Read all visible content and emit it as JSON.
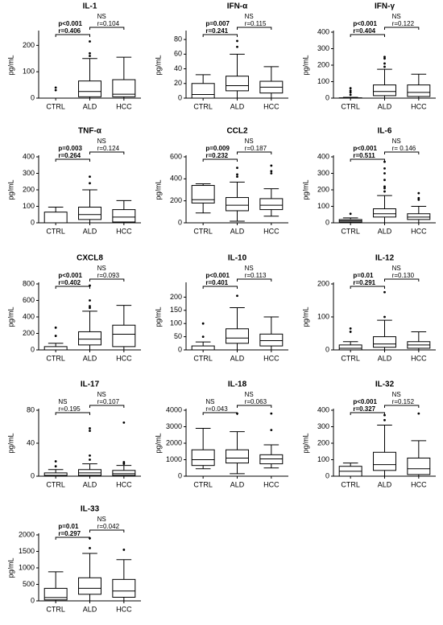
{
  "chart_data": [
    {
      "type": "box",
      "title": "IL-1",
      "y_label": "pg/mL",
      "categories": [
        "CTRL",
        "ALD",
        "HCC"
      ],
      "ylim": [
        0,
        250
      ],
      "yticks": [
        0,
        100,
        200
      ],
      "boxes": [
        {
          "whisker_low": 0,
          "q1": 0,
          "median": 0,
          "q3": 0,
          "whisker_high": 0,
          "outliers": [
            30,
            40
          ]
        },
        {
          "whisker_low": 0,
          "q1": 5,
          "median": 25,
          "q3": 65,
          "whisker_high": 150,
          "outliers": [
            160,
            170,
            215
          ]
        },
        {
          "whisker_low": 0,
          "q1": 5,
          "median": 15,
          "q3": 70,
          "whisker_high": 155,
          "outliers": []
        }
      ],
      "annotations": [
        {
          "text": [
            "p<0.001",
            "r=0.406"
          ],
          "bold": true
        },
        {
          "text": [
            "NS",
            "r=0.104"
          ],
          "bold": false
        }
      ]
    },
    {
      "type": "box",
      "title": "IFN-α",
      "y_label": "pg/mL",
      "categories": [
        "CTRL",
        "ALD",
        "HCC"
      ],
      "ylim": [
        0,
        90
      ],
      "yticks": [
        0,
        20,
        40,
        60,
        80
      ],
      "boxes": [
        {
          "whisker_low": 0,
          "q1": 0,
          "median": 5,
          "q3": 20,
          "whisker_high": 32,
          "outliers": []
        },
        {
          "whisker_low": 0,
          "q1": 10,
          "median": 17,
          "q3": 30,
          "whisker_high": 60,
          "outliers": [
            70,
            78
          ]
        },
        {
          "whisker_low": 0,
          "q1": 7,
          "median": 15,
          "q3": 23,
          "whisker_high": 43,
          "outliers": []
        }
      ],
      "annotations": [
        {
          "text": [
            "p=0.007",
            "r=0.241"
          ],
          "bold": true
        },
        {
          "text": [
            "NS",
            "r=0.115"
          ],
          "bold": false
        }
      ]
    },
    {
      "type": "box",
      "title": "IFN-γ",
      "y_label": "pg/mL",
      "categories": [
        "CTRL",
        "ALD",
        "HCC"
      ],
      "ylim": [
        0,
        400
      ],
      "yticks": [
        0,
        100,
        200,
        300,
        400
      ],
      "boxes": [
        {
          "whisker_low": 0,
          "q1": 0,
          "median": 0,
          "q3": 2,
          "whisker_high": 5,
          "outliers": [
            20,
            35,
            45,
            60
          ]
        },
        {
          "whisker_low": 0,
          "q1": 15,
          "median": 40,
          "q3": 80,
          "whisker_high": 175,
          "outliers": [
            190,
            210,
            240,
            250
          ]
        },
        {
          "whisker_low": 0,
          "q1": 10,
          "median": 35,
          "q3": 80,
          "whisker_high": 145,
          "outliers": []
        }
      ],
      "annotations": [
        {
          "text": [
            "p<0.001",
            "r=0.404"
          ],
          "bold": true
        },
        {
          "text": [
            "NS",
            "r=0.122"
          ],
          "bold": false
        }
      ]
    },
    {
      "type": "box",
      "title": "TNF-α",
      "y_label": "pg/mL",
      "categories": [
        "CTRL",
        "ALD",
        "HCC"
      ],
      "ylim": [
        0,
        400
      ],
      "yticks": [
        0,
        100,
        200,
        300,
        400
      ],
      "boxes": [
        {
          "whisker_low": 0,
          "q1": 0,
          "median": 0,
          "q3": 65,
          "whisker_high": 95,
          "outliers": []
        },
        {
          "whisker_low": 0,
          "q1": 20,
          "median": 50,
          "q3": 95,
          "whisker_high": 200,
          "outliers": [
            240,
            280
          ]
        },
        {
          "whisker_low": 0,
          "q1": 5,
          "median": 35,
          "q3": 80,
          "whisker_high": 135,
          "outliers": []
        }
      ],
      "annotations": [
        {
          "text": [
            "p=0.003",
            "r=0.264"
          ],
          "bold": true
        },
        {
          "text": [
            "NS",
            "r=0.124"
          ],
          "bold": false
        }
      ]
    },
    {
      "type": "box",
      "title": "CCL2",
      "y_label": "pg/mL",
      "categories": [
        "CTRL",
        "ALD",
        "HCC"
      ],
      "ylim": [
        0,
        600
      ],
      "yticks": [
        0,
        200,
        400,
        600
      ],
      "boxes": [
        {
          "whisker_low": 90,
          "q1": 180,
          "median": 210,
          "q3": 340,
          "whisker_high": 355,
          "outliers": []
        },
        {
          "whisker_low": 15,
          "q1": 110,
          "median": 160,
          "q3": 230,
          "whisker_high": 370,
          "outliers": [
            420,
            440,
            500
          ]
        },
        {
          "whisker_low": 60,
          "q1": 120,
          "median": 160,
          "q3": 220,
          "whisker_high": 310,
          "outliers": [
            450,
            470,
            520
          ]
        }
      ],
      "annotations": [
        {
          "text": [
            "p=0.009",
            "r=0.232"
          ],
          "bold": true
        },
        {
          "text": [
            "NS",
            "r=0.187"
          ],
          "bold": false
        }
      ]
    },
    {
      "type": "box",
      "title": "IL-6",
      "y_label": "pg/mL",
      "categories": [
        "CTRL",
        "ALD",
        "HCC"
      ],
      "ylim": [
        0,
        400
      ],
      "yticks": [
        0,
        100,
        200,
        300,
        400
      ],
      "boxes": [
        {
          "whisker_low": 0,
          "q1": 5,
          "median": 12,
          "q3": 20,
          "whisker_high": 30,
          "outliers": [
            55
          ]
        },
        {
          "whisker_low": 0,
          "q1": 35,
          "median": 55,
          "q3": 85,
          "whisker_high": 165,
          "outliers": [
            190,
            210,
            220,
            260,
            300,
            330,
            370
          ]
        },
        {
          "whisker_low": 0,
          "q1": 20,
          "median": 35,
          "q3": 55,
          "whisker_high": 100,
          "outliers": [
            140,
            150,
            180
          ]
        }
      ],
      "annotations": [
        {
          "text": [
            "p<0.001",
            "r=0.511"
          ],
          "bold": true
        },
        {
          "text": [
            "NS",
            "r= 0.146"
          ],
          "bold": false
        }
      ]
    },
    {
      "type": "box",
      "title": "CXCL8",
      "y_label": "pg/mL",
      "categories": [
        "CTRL",
        "ALD",
        "HCC"
      ],
      "ylim": [
        0,
        800
      ],
      "yticks": [
        0,
        200,
        400,
        600,
        800
      ],
      "boxes": [
        {
          "whisker_low": 0,
          "q1": 0,
          "median": 0,
          "q3": 40,
          "whisker_high": 80,
          "outliers": [
            170,
            270
          ]
        },
        {
          "whisker_low": 0,
          "q1": 60,
          "median": 130,
          "q3": 220,
          "whisker_high": 470,
          "outliers": [
            510,
            530,
            600,
            780
          ]
        },
        {
          "whisker_low": 0,
          "q1": 40,
          "median": 190,
          "q3": 300,
          "whisker_high": 540,
          "outliers": []
        }
      ],
      "annotations": [
        {
          "text": [
            "p<0.001",
            "r=0.402"
          ],
          "bold": true
        },
        {
          "text": [
            "NS",
            "r=0.093"
          ],
          "bold": false
        }
      ]
    },
    {
      "type": "box",
      "title": "IL-10",
      "y_label": "pg/mL",
      "categories": [
        "CTRL",
        "ALD",
        "HCC"
      ],
      "ylim": [
        0,
        250
      ],
      "yticks": [
        0,
        50,
        100,
        150,
        200
      ],
      "boxes": [
        {
          "whisker_low": 0,
          "q1": 0,
          "median": 0,
          "q3": 15,
          "whisker_high": 30,
          "outliers": [
            50,
            100
          ]
        },
        {
          "whisker_low": 0,
          "q1": 25,
          "median": 45,
          "q3": 80,
          "whisker_high": 160,
          "outliers": [
            205
          ]
        },
        {
          "whisker_low": 0,
          "q1": 15,
          "median": 35,
          "q3": 60,
          "whisker_high": 125,
          "outliers": []
        }
      ],
      "annotations": [
        {
          "text": [
            "p<0.001",
            "r=0.401"
          ],
          "bold": true
        },
        {
          "text": [
            "NS",
            "r=0.113"
          ],
          "bold": false
        }
      ]
    },
    {
      "type": "box",
      "title": "IL-12",
      "y_label": "pg/mL",
      "categories": [
        "CTRL",
        "ALD",
        "HCC"
      ],
      "ylim": [
        0,
        200
      ],
      "yticks": [
        0,
        100,
        200
      ],
      "boxes": [
        {
          "whisker_low": 0,
          "q1": 0,
          "median": 5,
          "q3": 15,
          "whisker_high": 25,
          "outliers": [
            55,
            65
          ]
        },
        {
          "whisker_low": 0,
          "q1": 8,
          "median": 18,
          "q3": 40,
          "whisker_high": 90,
          "outliers": [
            100,
            175
          ]
        },
        {
          "whisker_low": 0,
          "q1": 5,
          "median": 15,
          "q3": 25,
          "whisker_high": 55,
          "outliers": []
        }
      ],
      "annotations": [
        {
          "text": [
            "p=0.01",
            "r=0.291"
          ],
          "bold": true
        },
        {
          "text": [
            "NS",
            "r=0.130"
          ],
          "bold": false
        }
      ]
    },
    {
      "type": "box",
      "title": "IL-17",
      "y_label": "pg/mL",
      "categories": [
        "CTRL",
        "ALD",
        "HCC"
      ],
      "ylim": [
        0,
        80
      ],
      "yticks": [
        0,
        40,
        80
      ],
      "boxes": [
        {
          "whisker_low": 0,
          "q1": 0,
          "median": 1,
          "q3": 4,
          "whisker_high": 8,
          "outliers": [
            12,
            18
          ]
        },
        {
          "whisker_low": 0,
          "q1": 1,
          "median": 4,
          "q3": 8,
          "whisker_high": 15,
          "outliers": [
            20,
            25,
            55,
            58
          ]
        },
        {
          "whisker_low": 0,
          "q1": 1,
          "median": 3,
          "q3": 7,
          "whisker_high": 13,
          "outliers": [
            15,
            17,
            65
          ]
        }
      ],
      "annotations": [
        {
          "text": [
            "NS",
            "r=0.195"
          ],
          "bold": false
        },
        {
          "text": [
            "NS",
            "r=0.107"
          ],
          "bold": false
        }
      ]
    },
    {
      "type": "box",
      "title": "IL-18",
      "y_label": "pg/mL",
      "categories": [
        "CTRL",
        "ALD",
        "HCC"
      ],
      "ylim": [
        0,
        4000
      ],
      "yticks": [
        0,
        1000,
        2000,
        3000,
        4000
      ],
      "boxes": [
        {
          "whisker_low": 450,
          "q1": 650,
          "median": 1000,
          "q3": 1600,
          "whisker_high": 2900,
          "outliers": []
        },
        {
          "whisker_low": 150,
          "q1": 800,
          "median": 1100,
          "q3": 1600,
          "whisker_high": 2700,
          "outliers": [
            3800
          ]
        },
        {
          "whisker_low": 500,
          "q1": 750,
          "median": 1050,
          "q3": 1300,
          "whisker_high": 1900,
          "outliers": [
            2800,
            3800
          ]
        }
      ],
      "annotations": [
        {
          "text": [
            "NS",
            "r=0.043"
          ],
          "bold": false
        },
        {
          "text": [
            "NS",
            "r=0.063"
          ],
          "bold": false
        }
      ]
    },
    {
      "type": "box",
      "title": "IL-32",
      "y_label": "pg/mL",
      "categories": [
        "CTRL",
        "ALD",
        "HCC"
      ],
      "ylim": [
        0,
        400
      ],
      "yticks": [
        0,
        100,
        200,
        300,
        400
      ],
      "boxes": [
        {
          "whisker_low": 0,
          "q1": 0,
          "median": 30,
          "q3": 60,
          "whisker_high": 80,
          "outliers": []
        },
        {
          "whisker_low": 0,
          "q1": 35,
          "median": 70,
          "q3": 145,
          "whisker_high": 310,
          "outliers": [
            340,
            370
          ]
        },
        {
          "whisker_low": 0,
          "q1": 10,
          "median": 45,
          "q3": 110,
          "whisker_high": 215,
          "outliers": [
            380
          ]
        }
      ],
      "annotations": [
        {
          "text": [
            "p<0.001",
            "r=0.327"
          ],
          "bold": true
        },
        {
          "text": [
            "NS",
            "r=0.152"
          ],
          "bold": false
        }
      ]
    },
    {
      "type": "box",
      "title": "IL-33",
      "y_label": "pg/mL",
      "categories": [
        "CTRL",
        "ALD",
        "HCC"
      ],
      "ylim": [
        0,
        2000
      ],
      "yticks": [
        0,
        500,
        1000,
        1500,
        2000
      ],
      "boxes": [
        {
          "whisker_low": 0,
          "q1": 30,
          "median": 100,
          "q3": 380,
          "whisker_high": 880,
          "outliers": []
        },
        {
          "whisker_low": 0,
          "q1": 200,
          "median": 380,
          "q3": 700,
          "whisker_high": 1440,
          "outliers": [
            1600,
            1900
          ]
        },
        {
          "whisker_low": 0,
          "q1": 110,
          "median": 300,
          "q3": 650,
          "whisker_high": 1250,
          "outliers": [
            1550
          ]
        }
      ],
      "annotations": [
        {
          "text": [
            "p=0.01",
            "r=0.297"
          ],
          "bold": true
        },
        {
          "text": [
            "NS",
            "r=0.042"
          ],
          "bold": false
        }
      ]
    }
  ]
}
